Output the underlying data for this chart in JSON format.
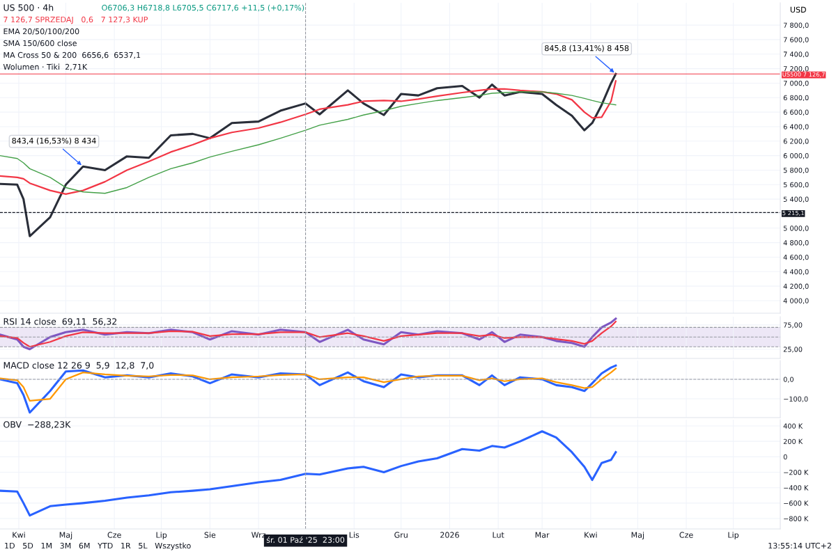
{
  "chart_data": [
    {
      "type": "line",
      "title": "US 500 · 4h",
      "annotations": [
        "O6706,3 H6718,8 L6705,5 C6717,6 +11,5 (+0,17%)",
        "7 126,7 SPRZEDAJ   0,6   7 127,3 KUP",
        "EMA 20/50/100/200",
        "SMA 150/600 close",
        "MA Cross 50 & 200  6656,6  6537,1",
        "Wolumen · Tiki  2,71K",
        {
          "text": "843,4 (16,53%) 8 434",
          "x": "2025-05-12",
          "y": 5850
        },
        {
          "text": "845,8 (13,41%) 8 458",
          "x": "2026-04-17",
          "y": 7126.7
        }
      ],
      "x": [
        "2025-03-20",
        "2025-03-31",
        "2025-04-04",
        "2025-04-08",
        "2025-04-21",
        "2025-05-01",
        "2025-05-12",
        "2025-05-26",
        "2025-06-09",
        "2025-06-23",
        "2025-07-07",
        "2025-07-21",
        "2025-08-01",
        "2025-08-15",
        "2025-09-01",
        "2025-09-15",
        "2025-10-01",
        "2025-10-10",
        "2025-10-28",
        "2025-11-07",
        "2025-11-20",
        "2025-12-01",
        "2025-12-12",
        "2025-12-24",
        "2026-01-09",
        "2026-01-20",
        "2026-01-28",
        "2026-02-05",
        "2026-02-15",
        "2026-03-01",
        "2026-03-10",
        "2026-03-20",
        "2026-03-28",
        "2026-04-02",
        "2026-04-08",
        "2026-04-14",
        "2026-04-17"
      ],
      "series": [
        {
          "color": "#2a2e39",
          "values": [
            5610,
            5600,
            5400,
            4890,
            5150,
            5600,
            5850,
            5800,
            5990,
            5970,
            6280,
            6300,
            6240,
            6450,
            6470,
            6620,
            6720,
            6570,
            6900,
            6720,
            6560,
            6850,
            6830,
            6930,
            6960,
            6800,
            6980,
            6830,
            6880,
            6850,
            6700,
            6550,
            6350,
            6450,
            6700,
            7000,
            7126.7
          ]
        },
        {
          "color": "#f23645",
          "values": [
            5720,
            5700,
            5680,
            5620,
            5520,
            5470,
            5520,
            5640,
            5800,
            5920,
            6050,
            6150,
            6240,
            6320,
            6380,
            6460,
            6570,
            6640,
            6700,
            6750,
            6760,
            6750,
            6780,
            6820,
            6870,
            6900,
            6920,
            6920,
            6900,
            6880,
            6850,
            6770,
            6600,
            6520,
            6530,
            6750,
            7030
          ]
        },
        {
          "color": "#43a047",
          "values": [
            6000,
            5960,
            5900,
            5820,
            5700,
            5560,
            5500,
            5480,
            5560,
            5700,
            5820,
            5900,
            5980,
            6060,
            6150,
            6240,
            6350,
            6420,
            6500,
            6560,
            6620,
            6680,
            6720,
            6760,
            6800,
            6830,
            6860,
            6870,
            6880,
            6880,
            6860,
            6830,
            6790,
            6760,
            6730,
            6710,
            6700
          ]
        }
      ],
      "xlim": [
        "2025-03-20",
        "2026-07-31"
      ],
      "xticks": [
        "2025-04-01",
        "2025-05-01",
        "2025-06-01",
        "2025-07-01",
        "2025-08-01",
        "2025-09-01",
        "2025-11-01",
        "2025-12-01",
        "2026-01-01",
        "2026-02-01",
        "2026-03-01",
        "2026-04-01",
        "2026-05-01",
        "2026-06-01",
        "2026-07-01"
      ],
      "ylim": [
        3827,
        8108
      ],
      "yticks": [
        {
          "value": 4000,
          "label": "4 000,0"
        },
        {
          "value": 4200,
          "label": "4 200,0"
        },
        {
          "value": 4400,
          "label": "4 400,0"
        },
        {
          "value": 4600,
          "label": "4 600,0"
        },
        {
          "value": 4800,
          "label": "4 800,0"
        },
        {
          "value": 5000,
          "label": "5 000,0"
        },
        {
          "value": 5200,
          "label": null
        },
        {
          "value": 5400,
          "label": "5 400,0"
        },
        {
          "value": 5600,
          "label": "5 600,0"
        },
        {
          "value": 5800,
          "label": "5 800,0"
        },
        {
          "value": 6000,
          "label": "6 000,0"
        },
        {
          "value": 6200,
          "label": "6 200,0"
        },
        {
          "value": 6400,
          "label": "6 400,0"
        },
        {
          "value": 6600,
          "label": "6 600,0"
        },
        {
          "value": 6800,
          "label": "6 800,0"
        },
        {
          "value": 7000,
          "label": "7 000,0"
        },
        {
          "value": 7200,
          "label": "7 200,0"
        },
        {
          "value": 7400,
          "label": "7 400,0"
        },
        {
          "value": 7600,
          "label": "7 600,0"
        },
        {
          "value": 7800,
          "label": "7 800,0"
        }
      ],
      "ref_lines": [
        {
          "axis": "y",
          "value": 5215.1,
          "label": "5 215,1",
          "color": "#131722",
          "line_style": "dashed"
        },
        {
          "axis": "y",
          "value": 7126.7,
          "label": "US500 7 126,7",
          "color": "#f23645",
          "line_style": "solid"
        },
        {
          "axis": "x",
          "value": "2025-10-01",
          "label": null,
          "color": "#9598a1",
          "line_style": "dashed"
        }
      ],
      "y2label": "USD",
      "grid": true,
      "legend": false,
      "tick_labels": "y",
      "line_style": "solid"
    },
    {
      "type": "line",
      "title": "RSI 14 close  69,11  56,32",
      "x": [
        "2025-03-20",
        "2025-03-31",
        "2025-04-04",
        "2025-04-08",
        "2025-04-21",
        "2025-05-01",
        "2025-05-12",
        "2025-05-26",
        "2025-06-09",
        "2025-06-23",
        "2025-07-07",
        "2025-07-21",
        "2025-08-01",
        "2025-08-15",
        "2025-09-01",
        "2025-09-15",
        "2025-10-01",
        "2025-10-10",
        "2025-10-28",
        "2025-11-07",
        "2025-11-20",
        "2025-12-01",
        "2025-12-12",
        "2025-12-24",
        "2026-01-09",
        "2026-01-20",
        "2026-01-28",
        "2026-02-05",
        "2026-02-15",
        "2026-03-01",
        "2026-03-10",
        "2026-03-20",
        "2026-03-28",
        "2026-04-02",
        "2026-04-08",
        "2026-04-14",
        "2026-04-17"
      ],
      "series": [
        {
          "color": "#7e57c2",
          "values": [
            55,
            45,
            30,
            25,
            50,
            60,
            65,
            55,
            60,
            58,
            65,
            60,
            45,
            62,
            55,
            65,
            60,
            40,
            65,
            45,
            35,
            60,
            55,
            62,
            58,
            45,
            60,
            40,
            55,
            50,
            42,
            38,
            30,
            50,
            70,
            80,
            88
          ]
        },
        {
          "color": "#f23645",
          "values": [
            52,
            48,
            38,
            30,
            40,
            52,
            60,
            58,
            58,
            58,
            62,
            61,
            52,
            56,
            56,
            60,
            60,
            50,
            58,
            52,
            42,
            52,
            55,
            58,
            58,
            52,
            55,
            48,
            50,
            50,
            46,
            42,
            36,
            42,
            58,
            72,
            82
          ]
        }
      ],
      "xlim": [
        "2025-03-20",
        "2026-07-31"
      ],
      "xticks": [
        "2025-04-01",
        "2025-05-01",
        "2025-06-01",
        "2025-07-01",
        "2025-08-01",
        "2025-09-01",
        "2025-11-01",
        "2025-12-01",
        "2026-01-01",
        "2026-02-01",
        "2026-03-01",
        "2026-04-01",
        "2026-05-01",
        "2026-06-01",
        "2026-07-01"
      ],
      "ylim": [
        6,
        92
      ],
      "yticks": [
        {
          "value": 25,
          "label": "25,00"
        },
        {
          "value": 75,
          "label": "75,00"
        }
      ],
      "ref_lines": [
        {
          "axis": "y",
          "value": 70,
          "label": null,
          "color": "#9598a1",
          "line_style": "dashed"
        },
        {
          "axis": "y",
          "value": 50,
          "label": null,
          "color": "#9598a1",
          "line_style": "dashed"
        },
        {
          "axis": "y",
          "value": 30,
          "label": null,
          "color": "#9598a1",
          "line_style": "dashed"
        },
        {
          "axis": "x",
          "value": "2025-10-01",
          "label": null,
          "color": "#9598a1",
          "line_style": "dashed"
        }
      ],
      "bands": [
        {
          "axis": "y",
          "from": 30,
          "to": 70,
          "label": null,
          "color": "#ede7f6"
        }
      ],
      "grid": true,
      "legend": false,
      "tick_labels": "y",
      "line_style": "solid"
    },
    {
      "type": "line",
      "title": "MACD close 12 26 9  5,9  12,8  7,0",
      "x": [
        "2025-03-20",
        "2025-03-31",
        "2025-04-04",
        "2025-04-08",
        "2025-04-21",
        "2025-05-01",
        "2025-05-12",
        "2025-05-26",
        "2025-06-09",
        "2025-06-23",
        "2025-07-07",
        "2025-07-21",
        "2025-08-01",
        "2025-08-15",
        "2025-09-01",
        "2025-09-15",
        "2025-10-01",
        "2025-10-10",
        "2025-10-28",
        "2025-11-07",
        "2025-11-20",
        "2025-12-01",
        "2025-12-12",
        "2025-12-24",
        "2026-01-09",
        "2026-01-20",
        "2026-01-28",
        "2026-02-05",
        "2026-02-15",
        "2026-03-01",
        "2026-03-10",
        "2026-03-20",
        "2026-03-28",
        "2026-04-02",
        "2026-04-08",
        "2026-04-14",
        "2026-04-17"
      ],
      "series": [
        {
          "color": "#2962ff",
          "values": [
            0,
            -20,
            -80,
            -170,
            -60,
            40,
            45,
            10,
            20,
            10,
            30,
            15,
            -20,
            25,
            10,
            30,
            25,
            -30,
            35,
            -10,
            -40,
            25,
            10,
            20,
            20,
            -30,
            20,
            -30,
            10,
            0,
            -30,
            -40,
            -60,
            -20,
            30,
            60,
            70
          ]
        },
        {
          "color": "#ff9800",
          "values": [
            5,
            -5,
            -40,
            -110,
            -100,
            0,
            35,
            25,
            18,
            15,
            22,
            20,
            0,
            10,
            15,
            22,
            25,
            0,
            10,
            10,
            -15,
            0,
            15,
            18,
            18,
            -5,
            5,
            -10,
            0,
            5,
            -15,
            -30,
            -45,
            -40,
            0,
            35,
            55
          ]
        }
      ],
      "xlim": [
        "2025-03-20",
        "2026-07-31"
      ],
      "xticks": [
        "2025-04-01",
        "2025-05-01",
        "2025-06-01",
        "2025-07-01",
        "2025-08-01",
        "2025-09-01",
        "2025-11-01",
        "2025-12-01",
        "2026-01-01",
        "2026-02-01",
        "2026-03-01",
        "2026-04-01",
        "2026-05-01",
        "2026-06-01",
        "2026-07-01"
      ],
      "ylim": [
        -196,
        96
      ],
      "yticks": [
        {
          "value": -100,
          "label": "−100,0"
        },
        {
          "value": 0,
          "label": "0,0"
        }
      ],
      "ref_lines": [
        {
          "axis": "y",
          "value": 0,
          "label": null,
          "color": "#9598a1",
          "line_style": "dashed"
        },
        {
          "axis": "x",
          "value": "2025-10-01",
          "label": null,
          "color": "#9598a1",
          "line_style": "dashed"
        }
      ],
      "grid": true,
      "legend": false,
      "tick_labels": "y",
      "line_style": "solid"
    },
    {
      "type": "line",
      "title": "OBV  −288,23K",
      "annotations": [
        "1D   5D   1M   3M   6M   YTD   1R   5L   Wszystko",
        "13:55:14 UTC+2"
      ],
      "x": [
        "2025-03-20",
        "2025-03-31",
        "2025-04-04",
        "2025-04-08",
        "2025-04-21",
        "2025-05-01",
        "2025-05-12",
        "2025-05-26",
        "2025-06-09",
        "2025-06-23",
        "2025-07-07",
        "2025-07-21",
        "2025-08-01",
        "2025-08-15",
        "2025-09-01",
        "2025-09-15",
        "2025-10-01",
        "2025-10-10",
        "2025-10-28",
        "2025-11-07",
        "2025-11-20",
        "2025-12-01",
        "2025-12-12",
        "2025-12-24",
        "2026-01-09",
        "2026-01-20",
        "2026-01-28",
        "2026-02-05",
        "2026-02-15",
        "2026-03-01",
        "2026-03-10",
        "2026-03-20",
        "2026-03-28",
        "2026-04-02",
        "2026-04-08",
        "2026-04-14",
        "2026-04-17"
      ],
      "series": [
        {
          "color": "#2962ff",
          "values": [
            -440,
            -450,
            -600,
            -760,
            -640,
            -620,
            -600,
            -570,
            -530,
            -500,
            -460,
            -440,
            -420,
            -380,
            -330,
            -300,
            -220,
            -230,
            -150,
            -130,
            -200,
            -120,
            -60,
            -20,
            100,
            80,
            140,
            120,
            200,
            330,
            250,
            60,
            -130,
            -300,
            -80,
            -40,
            60
          ]
        }
      ],
      "xlim": [
        "2025-03-20",
        "2026-07-31"
      ],
      "xticks": [
        {
          "value": "2025-04-01",
          "label": "Kwi"
        },
        {
          "value": "2025-05-01",
          "label": "Maj"
        },
        {
          "value": "2025-06-01",
          "label": "Cze"
        },
        {
          "value": "2025-07-01",
          "label": "Lip"
        },
        {
          "value": "2025-08-01",
          "label": "Sie"
        },
        {
          "value": "2025-09-01",
          "label": "Wrz"
        },
        {
          "value": "2025-11-01",
          "label": "Lis"
        },
        {
          "value": "2025-12-01",
          "label": "Gru"
        },
        {
          "value": "2026-01-01",
          "label": "2026"
        },
        {
          "value": "2026-02-01",
          "label": "Lut"
        },
        {
          "value": "2026-03-01",
          "label": "Mar"
        },
        {
          "value": "2026-04-01",
          "label": "Kwi"
        },
        {
          "value": "2026-05-01",
          "label": "Maj"
        },
        {
          "value": "2026-06-01",
          "label": "Cze"
        },
        {
          "value": "2026-07-01",
          "label": "Lip"
        }
      ],
      "ylim": [
        -935,
        481
      ],
      "yticks": [
        {
          "value": -800,
          "label": "−800 K"
        },
        {
          "value": -600,
          "label": "−600 K"
        },
        {
          "value": -400,
          "label": "−400 K"
        },
        {
          "value": -200,
          "label": "−200 K"
        },
        {
          "value": 0,
          "label": "0"
        },
        {
          "value": 200,
          "label": "200 K"
        },
        {
          "value": 400,
          "label": "400 K"
        }
      ],
      "ref_lines": [
        {
          "axis": "x",
          "value": "2025-10-01",
          "label": "śr. 01 Paź '25  23:00",
          "color": "#9598a1",
          "line_style": "dashed"
        }
      ],
      "grid": true,
      "legend": false,
      "line_style": "solid"
    }
  ]
}
